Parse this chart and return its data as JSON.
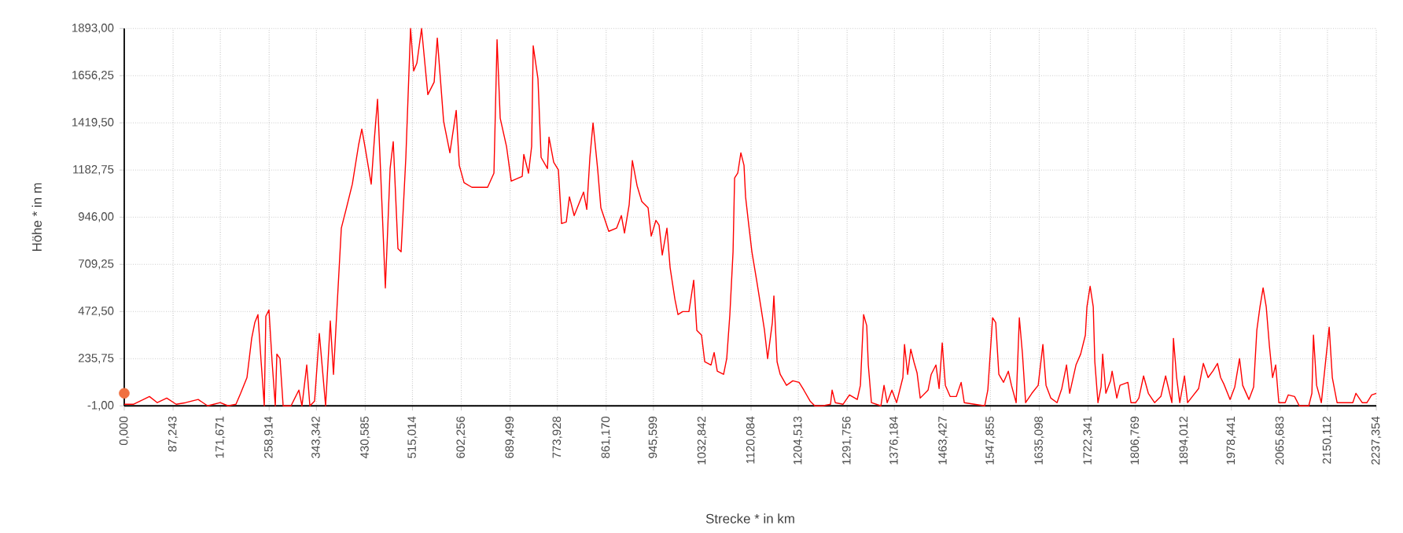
{
  "chart_data": {
    "type": "line",
    "xlabel": "Strecke * in km",
    "ylabel": "Höhe * in m",
    "grid": true,
    "marker": "none",
    "line_style": "solid",
    "xlim": [
      0,
      2237.354
    ],
    "ylim": [
      -1,
      1893
    ],
    "xticks": [
      {
        "value": 0,
        "label": "0,000"
      },
      {
        "value": 87.243,
        "label": "87,243"
      },
      {
        "value": 171.671,
        "label": "171,671"
      },
      {
        "value": 258.914,
        "label": "258,914"
      },
      {
        "value": 343.342,
        "label": "343,342"
      },
      {
        "value": 430.585,
        "label": "430,585"
      },
      {
        "value": 515.014,
        "label": "515,014"
      },
      {
        "value": 602.256,
        "label": "602,256"
      },
      {
        "value": 689.499,
        "label": "689,499"
      },
      {
        "value": 773.928,
        "label": "773,928"
      },
      {
        "value": 861.17,
        "label": "861,170"
      },
      {
        "value": 945.599,
        "label": "945,599"
      },
      {
        "value": 1032.842,
        "label": "1032,842"
      },
      {
        "value": 1120.084,
        "label": "1120,084"
      },
      {
        "value": 1204.513,
        "label": "1204,513"
      },
      {
        "value": 1291.756,
        "label": "1291,756"
      },
      {
        "value": 1376.184,
        "label": "1376,184"
      },
      {
        "value": 1463.427,
        "label": "1463,427"
      },
      {
        "value": 1547.855,
        "label": "1547,855"
      },
      {
        "value": 1635.098,
        "label": "1635,098"
      },
      {
        "value": 1722.341,
        "label": "1722,341"
      },
      {
        "value": 1806.769,
        "label": "1806,769"
      },
      {
        "value": 1894.012,
        "label": "1894,012"
      },
      {
        "value": 1978.441,
        "label": "1978,441"
      },
      {
        "value": 2065.683,
        "label": "2065,683"
      },
      {
        "value": 2150.112,
        "label": "2150,112"
      },
      {
        "value": 2237.354,
        "label": "2237,354"
      }
    ],
    "yticks": [
      {
        "value": -1,
        "label": "-1,00"
      },
      {
        "value": 235.75,
        "label": "235,75"
      },
      {
        "value": 472.5,
        "label": "472,50"
      },
      {
        "value": 709.25,
        "label": "709,25"
      },
      {
        "value": 946,
        "label": "946,00"
      },
      {
        "value": 1182.75,
        "label": "1182,75"
      },
      {
        "value": 1419.5,
        "label": "1419,50"
      },
      {
        "value": 1656.25,
        "label": "1656,25"
      },
      {
        "value": 1893,
        "label": "1893,00"
      }
    ],
    "series": [
      {
        "type": "line",
        "color": "#ff0000",
        "x": [
          0,
          16.9,
          45.0,
          59.0,
          75.9,
          92.8,
          109.6,
          132.1,
          149.0,
          171.5,
          185.5,
          199.6,
          208.0,
          219.3,
          227.7,
          233.3,
          238.9,
          244.6,
          250.2,
          253.0,
          258.6,
          264.2,
          269.9,
          272.7,
          278.3,
          283.9,
          298.0,
          312.0,
          317.6,
          326.1,
          331.7,
          340.1,
          348.6,
          354.2,
          359.8,
          368.2,
          373.9,
          379.5,
          387.9,
          396.4,
          407.6,
          418.8,
          424.5,
          430.1,
          441.3,
          447.0,
          452.6,
          458.2,
          466.6,
          475.1,
          480.7,
          489.1,
          494.7,
          503.2,
          511.6,
          517.2,
          522.9,
          531.3,
          542.5,
          553.8,
          559.4,
          570.7,
          581.9,
          593.2,
          598.7,
          607.2,
          621.2,
          649.3,
          660.6,
          666.2,
          671.8,
          683.1,
          691.5,
          711.2,
          714.0,
          722.4,
          728.0,
          730.8,
          739.3,
          744.9,
          756.2,
          759.0,
          767.4,
          775.8,
          781.5,
          789.9,
          795.5,
          804.0,
          815.2,
          820.8,
          826.5,
          832.1,
          837.7,
          846.1,
          851.7,
          865.8,
          879.8,
          888.3,
          893.9,
          902.3,
          908.0,
          916.4,
          924.8,
          936.1,
          941.7,
          950.1,
          955.7,
          961.4,
          969.8,
          975.4,
          983.9,
          989.5,
          997.9,
          1009.1,
          1017.6,
          1023.2,
          1031.6,
          1037.3,
          1048.5,
          1054.1,
          1059.7,
          1071.0,
          1076.6,
          1082.2,
          1087.9,
          1090.7,
          1096.3,
          1101.9,
          1107.5,
          1110.3,
          1116.0,
          1121.6,
          1130.0,
          1138.5,
          1144.1,
          1149.7,
          1158.1,
          1160.9,
          1166.6,
          1172.2,
          1183.4,
          1194.7,
          1205.9,
          1214.4,
          1225.6,
          1234.0,
          1248.1,
          1262.1,
          1264.9,
          1270.6,
          1284.6,
          1295.9,
          1309.9,
          1315.5,
          1321.2,
          1326.8,
          1329.6,
          1335.2,
          1352.1,
          1357.7,
          1363.3,
          1371.8,
          1380.2,
          1391.4,
          1394.3,
          1399.9,
          1405.5,
          1411.1,
          1416.7,
          1422.4,
          1436.4,
          1442.0,
          1450.5,
          1456.1,
          1461.7,
          1467.3,
          1475.8,
          1487.0,
          1495.5,
          1501.1,
          1537.6,
          1543.2,
          1551.7,
          1557.3,
          1562.9,
          1571.3,
          1579.8,
          1585.4,
          1593.8,
          1599.5,
          1605.1,
          1610.7,
          1621.9,
          1633.2,
          1641.6,
          1647.2,
          1655.7,
          1666.9,
          1675.4,
          1683.8,
          1689.4,
          1700.7,
          1709.1,
          1717.5,
          1720.3,
          1726.0,
          1731.6,
          1734.4,
          1740.0,
          1745.6,
          1748.4,
          1754.1,
          1762.5,
          1765.3,
          1773.7,
          1779.4,
          1793.4,
          1799.0,
          1807.5,
          1813.1,
          1821.5,
          1830.0,
          1841.2,
          1852.4,
          1860.9,
          1872.1,
          1874.9,
          1880.6,
          1886.2,
          1894.6,
          1900.2,
          1908.7,
          1919.9,
          1928.3,
          1936.8,
          1945.2,
          1953.6,
          1959.2,
          1964.9,
          1976.1,
          1984.5,
          1993.0,
          1998.6,
          2009.8,
          2018.2,
          2023.9,
          2029.5,
          2035.1,
          2040.7,
          2046.4,
          2052.0,
          2057.6,
          2063.2,
          2074.5,
          2080.1,
          2091.3,
          2099.8,
          2116.7,
          2122.3,
          2125.1,
          2130.7,
          2139.2,
          2147.6,
          2153.2,
          2158.8,
          2167.3,
          2195.4,
          2201.0,
          2212.2,
          2220.7,
          2229.1,
          2237.354
        ],
        "values": [
          7,
          7,
          46,
          15,
          38,
          7,
          15,
          31,
          -1,
          15,
          -1,
          7,
          62,
          141,
          338,
          417,
          457,
          220,
          -1,
          449,
          480,
          220,
          -1,
          259,
          236,
          -1,
          -1,
          78,
          -1,
          204,
          -1,
          23,
          362,
          181,
          -1,
          425,
          157,
          457,
          891,
          985,
          1112,
          1309,
          1388,
          1301,
          1112,
          1340,
          1538,
          1167,
          591,
          1190,
          1325,
          788,
          772,
          1246,
          1893,
          1680,
          1719,
          1893,
          1561,
          1624,
          1845,
          1427,
          1269,
          1482,
          1206,
          1119,
          1096,
          1096,
          1167,
          1837,
          1443,
          1301,
          1127,
          1151,
          1261,
          1167,
          1301,
          1806,
          1640,
          1246,
          1190,
          1348,
          1222,
          1183,
          914,
          922,
          1048,
          954,
          1033,
          1072,
          985,
          1246,
          1419,
          1183,
          993,
          875,
          891,
          954,
          867,
          1009,
          1230,
          1104,
          1025,
          993,
          851,
          930,
          906,
          756,
          891,
          693,
          536,
          457,
          472,
          472,
          630,
          378,
          354,
          220,
          204,
          267,
          173,
          157,
          236,
          457,
          772,
          1143,
          1167,
          1269,
          1206,
          1048,
          906,
          772,
          630,
          480,
          378,
          236,
          417,
          551,
          220,
          157,
          102,
          125,
          117,
          78,
          23,
          -1,
          -1,
          7,
          78,
          15,
          7,
          54,
          31,
          102,
          457,
          401,
          204,
          15,
          -1,
          102,
          15,
          78,
          15,
          141,
          307,
          157,
          283,
          220,
          165,
          38,
          78,
          157,
          204,
          86,
          315,
          102,
          46,
          46,
          117,
          15,
          -1,
          78,
          441,
          417,
          157,
          117,
          173,
          102,
          15,
          441,
          259,
          15,
          62,
          102,
          307,
          102,
          38,
          15,
          86,
          204,
          62,
          204,
          259,
          354,
          496,
          599,
          496,
          220,
          15,
          94,
          259,
          62,
          125,
          173,
          38,
          102,
          117,
          15,
          15,
          38,
          149,
          62,
          15,
          46,
          149,
          15,
          338,
          141,
          15,
          149,
          15,
          46,
          86,
          212,
          141,
          173,
          212,
          141,
          109,
          31,
          94,
          236,
          102,
          31,
          94,
          378,
          496,
          591,
          496,
          299,
          141,
          204,
          15,
          15,
          54,
          46,
          -1,
          -1,
          62,
          354,
          102,
          15,
          244,
          394,
          141,
          15,
          15,
          62,
          15,
          15,
          54,
          62
        ]
      },
      {
        "type": "scatter",
        "color": "#f07040",
        "marker": "circle",
        "x": [
          0
        ],
        "values": [
          62
        ]
      }
    ]
  }
}
